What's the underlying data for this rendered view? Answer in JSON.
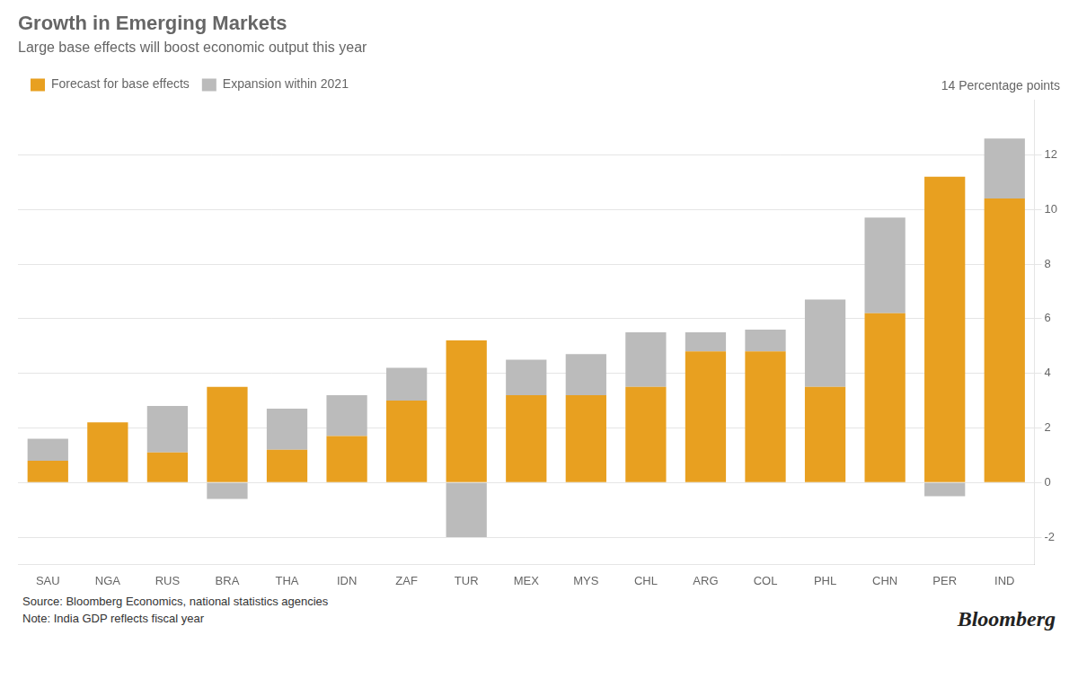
{
  "chart_data": {
    "type": "bar",
    "title": "Growth in Emerging Markets",
    "subtitle": "Large base effects will boost economic output this year",
    "ylabel": "14 Percentage points",
    "annotations": [
      "Source: Bloomberg Economics, national statistics agencies",
      "Note: India GDP reflects fiscal year",
      "Bloomberg"
    ],
    "categories": [
      "SAU",
      "NGA",
      "RUS",
      "BRA",
      "THA",
      "IDN",
      "ZAF",
      "TUR",
      "MEX",
      "MYS",
      "CHL",
      "ARG",
      "COL",
      "PHL",
      "CHN",
      "PER",
      "IND"
    ],
    "series": [
      {
        "name": "Forecast for base effects",
        "color": "#E8A020",
        "values": [
          0.8,
          2.2,
          1.1,
          3.5,
          1.2,
          1.7,
          3.0,
          5.2,
          3.2,
          3.2,
          3.5,
          4.8,
          4.8,
          3.5,
          6.2,
          11.2,
          10.4
        ]
      },
      {
        "name": "Expansion within 2021",
        "color": "#BBBBBB",
        "values": [
          0.8,
          0.0,
          1.7,
          -0.6,
          1.5,
          1.5,
          1.2,
          -2.0,
          1.3,
          1.5,
          2.0,
          0.7,
          0.8,
          3.2,
          3.5,
          -0.5,
          2.2
        ]
      }
    ],
    "stacked": true,
    "ylim": [
      -3,
      14
    ],
    "yticks": [
      -2,
      0,
      2,
      4,
      6,
      8,
      10,
      12
    ],
    "grid": true,
    "legend": "top-left"
  }
}
